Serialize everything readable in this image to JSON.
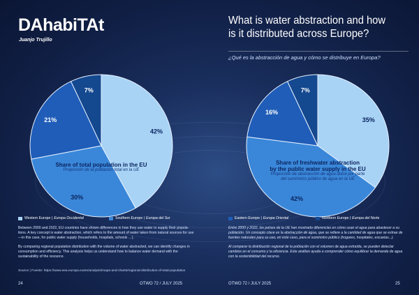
{
  "brand": "DAhabiTAt",
  "author": "Juanjo Trujillo",
  "title": "What is water abstraction and how is it distributed across Europe?",
  "subtitle": "¿Qué es la abstracción de agua y cómo se distribuye en Europa?",
  "colors": {
    "western": "#a8d3f5",
    "southern": "#3a87d9",
    "eastern": "#1f5db8",
    "northern": "#14488f"
  },
  "chart_data": [
    {
      "type": "pie",
      "title": "Share of total population in the EU",
      "subtitle": "Proporción de la población total en la UE",
      "categories": [
        "Western Europe",
        "Southern Europe",
        "Eastern Europe",
        "Northern Europe"
      ],
      "values": [
        42,
        30,
        21,
        7
      ],
      "labels": [
        "42%",
        "30%",
        "21%",
        "7%"
      ]
    },
    {
      "type": "pie",
      "title": "Share of freshwater abstraction by the public water supply in the EU",
      "title_line1": "Share of freshwater abstraction",
      "title_line2": "by the public water supply in the EU",
      "subtitle": "Proporción de abstracción de agua dulce por parte del suministro público de agua en la UE",
      "subtitle_line1": "Proporción de abstracción de agua dulce por parte",
      "subtitle_line2": "del suministro público de agua en la UE",
      "categories": [
        "Western Europe",
        "Southern Europe",
        "Eastern Europe",
        "Northern Europe"
      ],
      "values": [
        35,
        42,
        16,
        7
      ],
      "labels": [
        "35%",
        "42%",
        "16%",
        "7%"
      ]
    }
  ],
  "legend": [
    {
      "en": "Western Europe",
      "es": "Europa Occidental"
    },
    {
      "en": "Southern Europe",
      "es": "Europa del Sur"
    },
    {
      "en": "Eastern Europe",
      "es": "Europa Oriental"
    },
    {
      "en": "Northern Europe",
      "es": "Europa del Norte"
    }
  ],
  "body_en": [
    "Between 2000 and 2022, EU countries have shown differences in how they use water to supply their popula-tions. A key concept is water abstraction, which refers to the amount of water taken from natural sources for use—in this case, for public water supply (households, hospitals, schools …).",
    "By comparing regional population distribution with the volume of water abstracted, we can identify changes in consumption and efficiency. This analysis helps us understand how to balance water demand with the sustainability of the resource."
  ],
  "body_es": [
    "Entre 2000 y 2022, los países de la UE han mostrado diferencias en cómo usan el agua para abastecer a su población. Un concepto clave es la abstracción de agua, que se refiere a la cantidad de agua que se extrae de fuentes naturales para su uso, en este caso, para el suministro público (hogares, hospitales, escuelas...).",
    "Al comparar la distribución regional de la población con el volumen de agua extraída, se pueden detectar cambios en el consumo y la eficiencia. Este análisis ayuda a comprender cómo equilibrar la demanda de agua con la sostenibilidad del recurso."
  ],
  "source": "Source | Fuente: https://www.eea.europa.eu/en/analysis/maps-and-charts/regional-distribution-of-total-population",
  "footer": {
    "left_page": "24",
    "left_issue": "OTWO 72 / JULY 2025",
    "right_issue": "OTWO 72 / JULY 2025",
    "right_page": "25"
  }
}
